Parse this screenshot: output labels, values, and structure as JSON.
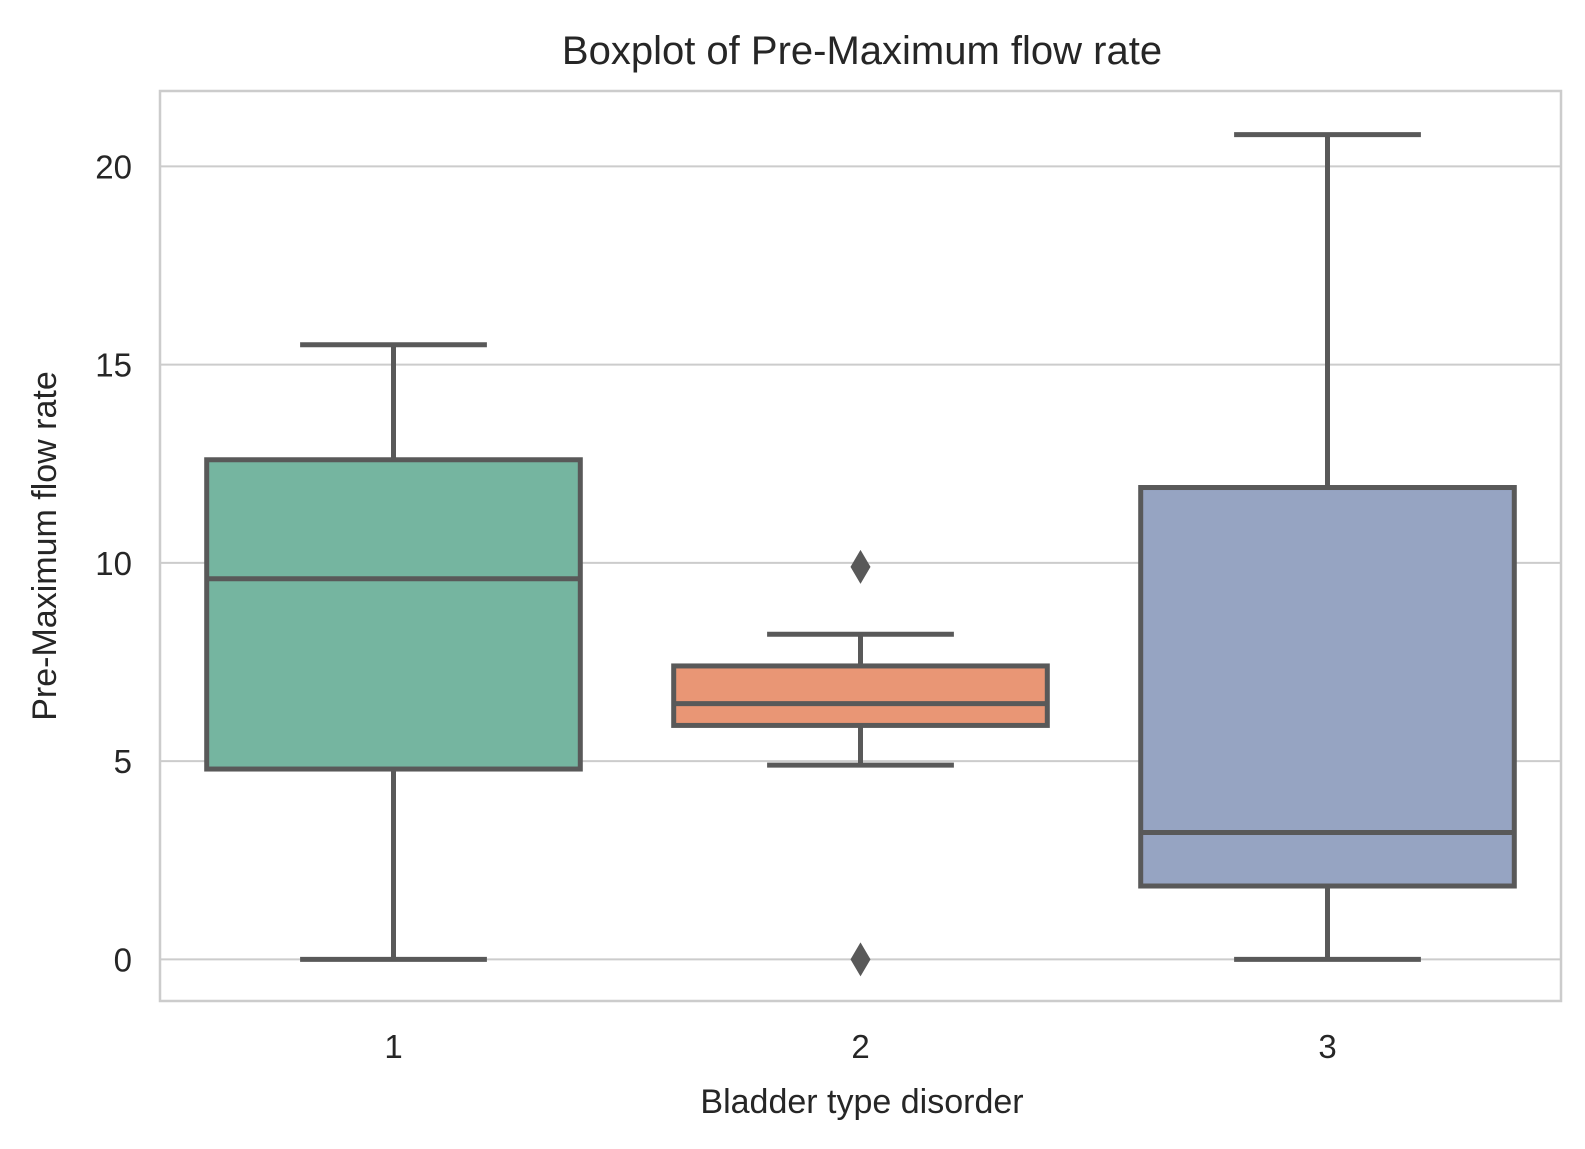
{
  "chart_data": {
    "type": "boxplot",
    "title": "Boxplot of Pre-Maximum flow rate",
    "xlabel": "Bladder type disorder",
    "ylabel": "Pre-Maximum flow rate",
    "categories": [
      "1",
      "2",
      "3"
    ],
    "ylim": [
      -1.05,
      21.9
    ],
    "yticks": [
      0,
      5,
      10,
      15,
      20
    ],
    "ytick_labels": [
      "0",
      "5",
      "10",
      "15",
      "20"
    ],
    "grid": "horizontal",
    "boxes": [
      {
        "category": "1",
        "whisker_low": 0.0,
        "q1": 4.8,
        "median": 9.6,
        "q3": 12.6,
        "whisker_high": 15.5,
        "outliers": [],
        "color": "#75b5a0"
      },
      {
        "category": "2",
        "whisker_low": 4.9,
        "q1": 5.9,
        "median": 6.45,
        "q3": 7.4,
        "whisker_high": 8.2,
        "outliers": [
          9.9,
          0.0
        ],
        "color": "#e99675"
      },
      {
        "category": "3",
        "whisker_low": 0.0,
        "q1": 1.85,
        "median": 3.2,
        "q3": 11.9,
        "whisker_high": 20.8,
        "outliers": [],
        "color": "#96a4c2"
      }
    ],
    "line_color": "#595959",
    "grid_color": "#cccccc"
  }
}
